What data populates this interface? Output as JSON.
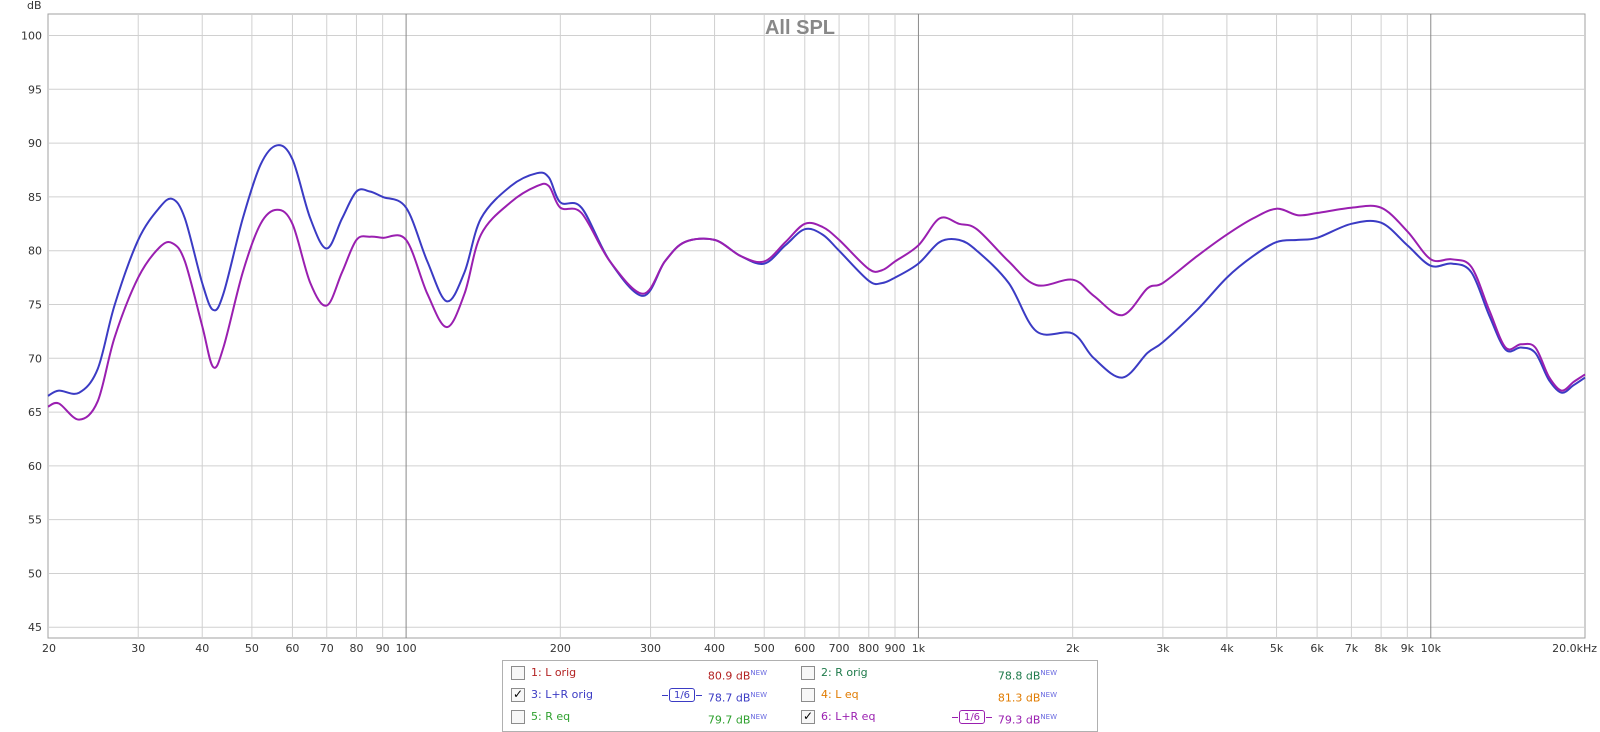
{
  "chart_data": {
    "type": "line",
    "title": "All SPL",
    "ylabel": "dB",
    "xscale": "log",
    "xlim": [
      20,
      20000
    ],
    "ylim": [
      44,
      102
    ],
    "grid": true,
    "yticks": [
      "45",
      "50",
      "55",
      "60",
      "65",
      "70",
      "75",
      "80",
      "85",
      "90",
      "95",
      "100"
    ],
    "xticks": [
      {
        "v": 20,
        "t": "20"
      },
      {
        "v": 30,
        "t": "30"
      },
      {
        "v": 40,
        "t": "40"
      },
      {
        "v": 50,
        "t": "50"
      },
      {
        "v": 60,
        "t": "60"
      },
      {
        "v": 70,
        "t": "70"
      },
      {
        "v": 80,
        "t": "80"
      },
      {
        "v": 90,
        "t": "90"
      },
      {
        "v": 100,
        "t": "100"
      },
      {
        "v": 200,
        "t": "200"
      },
      {
        "v": 300,
        "t": "300"
      },
      {
        "v": 400,
        "t": "400"
      },
      {
        "v": 500,
        "t": "500"
      },
      {
        "v": 600,
        "t": "600"
      },
      {
        "v": 700,
        "t": "700"
      },
      {
        "v": 800,
        "t": "800"
      },
      {
        "v": 900,
        "t": "900"
      },
      {
        "v": 1000,
        "t": "1k"
      },
      {
        "v": 2000,
        "t": "2k"
      },
      {
        "v": 3000,
        "t": "3k"
      },
      {
        "v": 4000,
        "t": "4k"
      },
      {
        "v": 5000,
        "t": "5k"
      },
      {
        "v": 6000,
        "t": "6k"
      },
      {
        "v": 7000,
        "t": "7k"
      },
      {
        "v": 8000,
        "t": "8k"
      },
      {
        "v": 9000,
        "t": "9k"
      },
      {
        "v": 10000,
        "t": "10k"
      },
      {
        "v": 20000,
        "t": "20.0kHz"
      }
    ],
    "series": [
      {
        "name": "3: L+R orig",
        "color": "#3b3bc4",
        "points": [
          [
            20,
            66.5
          ],
          [
            21,
            67
          ],
          [
            23,
            66.8
          ],
          [
            25,
            69
          ],
          [
            27,
            75
          ],
          [
            30,
            81
          ],
          [
            33,
            84
          ],
          [
            35,
            84.8
          ],
          [
            37,
            83
          ],
          [
            40,
            77
          ],
          [
            42,
            74.5
          ],
          [
            44,
            76
          ],
          [
            48,
            83
          ],
          [
            52,
            88
          ],
          [
            56,
            89.8
          ],
          [
            60,
            88.5
          ],
          [
            65,
            83
          ],
          [
            70,
            80.2
          ],
          [
            75,
            83
          ],
          [
            80,
            85.5
          ],
          [
            85,
            85.5
          ],
          [
            90,
            85
          ],
          [
            100,
            84
          ],
          [
            110,
            79
          ],
          [
            120,
            75.3
          ],
          [
            130,
            78
          ],
          [
            140,
            83
          ],
          [
            160,
            86
          ],
          [
            180,
            87.2
          ],
          [
            190,
            86.8
          ],
          [
            200,
            84.5
          ],
          [
            220,
            84
          ],
          [
            250,
            79
          ],
          [
            290,
            75.8
          ],
          [
            320,
            79
          ],
          [
            350,
            80.8
          ],
          [
            400,
            81
          ],
          [
            450,
            79.5
          ],
          [
            500,
            78.8
          ],
          [
            550,
            80.5
          ],
          [
            600,
            82
          ],
          [
            650,
            81.5
          ],
          [
            700,
            80
          ],
          [
            800,
            77.2
          ],
          [
            850,
            77
          ],
          [
            900,
            77.5
          ],
          [
            1000,
            78.8
          ],
          [
            1100,
            80.8
          ],
          [
            1200,
            81
          ],
          [
            1300,
            80
          ],
          [
            1500,
            77
          ],
          [
            1700,
            72.5
          ],
          [
            2000,
            72.3
          ],
          [
            2200,
            70
          ],
          [
            2500,
            68.2
          ],
          [
            2800,
            70.5
          ],
          [
            3000,
            71.5
          ],
          [
            3500,
            74.5
          ],
          [
            4000,
            77.5
          ],
          [
            4500,
            79.5
          ],
          [
            5000,
            80.8
          ],
          [
            5500,
            81
          ],
          [
            6000,
            81.2
          ],
          [
            7000,
            82.5
          ],
          [
            8000,
            82.6
          ],
          [
            9000,
            80.5
          ],
          [
            10000,
            78.6
          ],
          [
            11000,
            78.8
          ],
          [
            12000,
            78
          ],
          [
            13000,
            74
          ],
          [
            14000,
            70.8
          ],
          [
            15000,
            71
          ],
          [
            16000,
            70.5
          ],
          [
            17000,
            68
          ],
          [
            18000,
            66.8
          ],
          [
            19000,
            67.5
          ],
          [
            20000,
            68.2
          ]
        ]
      },
      {
        "name": "6: L+R eq",
        "color": "#9a1fb0",
        "points": [
          [
            20,
            65.5
          ],
          [
            21,
            65.8
          ],
          [
            23,
            64.3
          ],
          [
            25,
            66
          ],
          [
            27,
            72
          ],
          [
            30,
            77.5
          ],
          [
            33,
            80.3
          ],
          [
            35,
            80.7
          ],
          [
            37,
            79
          ],
          [
            40,
            73
          ],
          [
            42,
            69.2
          ],
          [
            44,
            71
          ],
          [
            48,
            78
          ],
          [
            52,
            82.5
          ],
          [
            56,
            83.8
          ],
          [
            60,
            82.5
          ],
          [
            65,
            77
          ],
          [
            70,
            74.9
          ],
          [
            75,
            78
          ],
          [
            80,
            81
          ],
          [
            85,
            81.3
          ],
          [
            90,
            81.2
          ],
          [
            100,
            81
          ],
          [
            110,
            76
          ],
          [
            120,
            72.9
          ],
          [
            130,
            76
          ],
          [
            140,
            81.5
          ],
          [
            160,
            84.5
          ],
          [
            180,
            86
          ],
          [
            190,
            86
          ],
          [
            200,
            84
          ],
          [
            220,
            83.5
          ],
          [
            250,
            79
          ],
          [
            290,
            76
          ],
          [
            320,
            79
          ],
          [
            350,
            80.8
          ],
          [
            400,
            81
          ],
          [
            450,
            79.5
          ],
          [
            500,
            79
          ],
          [
            550,
            80.8
          ],
          [
            600,
            82.5
          ],
          [
            650,
            82.2
          ],
          [
            700,
            81
          ],
          [
            800,
            78.3
          ],
          [
            850,
            78.2
          ],
          [
            900,
            79
          ],
          [
            1000,
            80.5
          ],
          [
            1100,
            83
          ],
          [
            1200,
            82.5
          ],
          [
            1300,
            82
          ],
          [
            1500,
            79
          ],
          [
            1700,
            76.8
          ],
          [
            2000,
            77.3
          ],
          [
            2200,
            75.8
          ],
          [
            2500,
            74
          ],
          [
            2800,
            76.5
          ],
          [
            3000,
            77
          ],
          [
            3500,
            79.5
          ],
          [
            4000,
            81.5
          ],
          [
            4500,
            83
          ],
          [
            5000,
            83.9
          ],
          [
            5500,
            83.3
          ],
          [
            6000,
            83.5
          ],
          [
            7000,
            84
          ],
          [
            8000,
            84
          ],
          [
            9000,
            81.8
          ],
          [
            10000,
            79.2
          ],
          [
            11000,
            79.2
          ],
          [
            12000,
            78.5
          ],
          [
            13000,
            74.5
          ],
          [
            14000,
            71
          ],
          [
            15000,
            71.3
          ],
          [
            16000,
            71
          ],
          [
            17000,
            68.3
          ],
          [
            18000,
            67
          ],
          [
            19000,
            67.8
          ],
          [
            20000,
            68.5
          ]
        ]
      }
    ]
  },
  "legend": [
    {
      "label": "1: L orig",
      "value": "80.9 dB",
      "checked": false,
      "color": "#b32222",
      "smoothing": ""
    },
    {
      "label": "2: R orig",
      "value": "78.8 dB",
      "checked": false,
      "color": "#1e7a4a",
      "smoothing": ""
    },
    {
      "label": "3: L+R orig",
      "value": "78.7 dB",
      "checked": true,
      "color": "#3b3bc4",
      "smoothing": "1/6"
    },
    {
      "label": "4: L eq",
      "value": "81.3 dB",
      "checked": false,
      "color": "#e07b00",
      "smoothing": ""
    },
    {
      "label": "5: R eq",
      "value": "79.7 dB",
      "checked": false,
      "color": "#2ea02e",
      "smoothing": ""
    },
    {
      "label": "6: L+R eq",
      "value": "79.3 dB",
      "checked": true,
      "color": "#9a1fb0",
      "smoothing": "1/6"
    }
  ],
  "new_badge": "NEW",
  "check_glyph": "✓"
}
